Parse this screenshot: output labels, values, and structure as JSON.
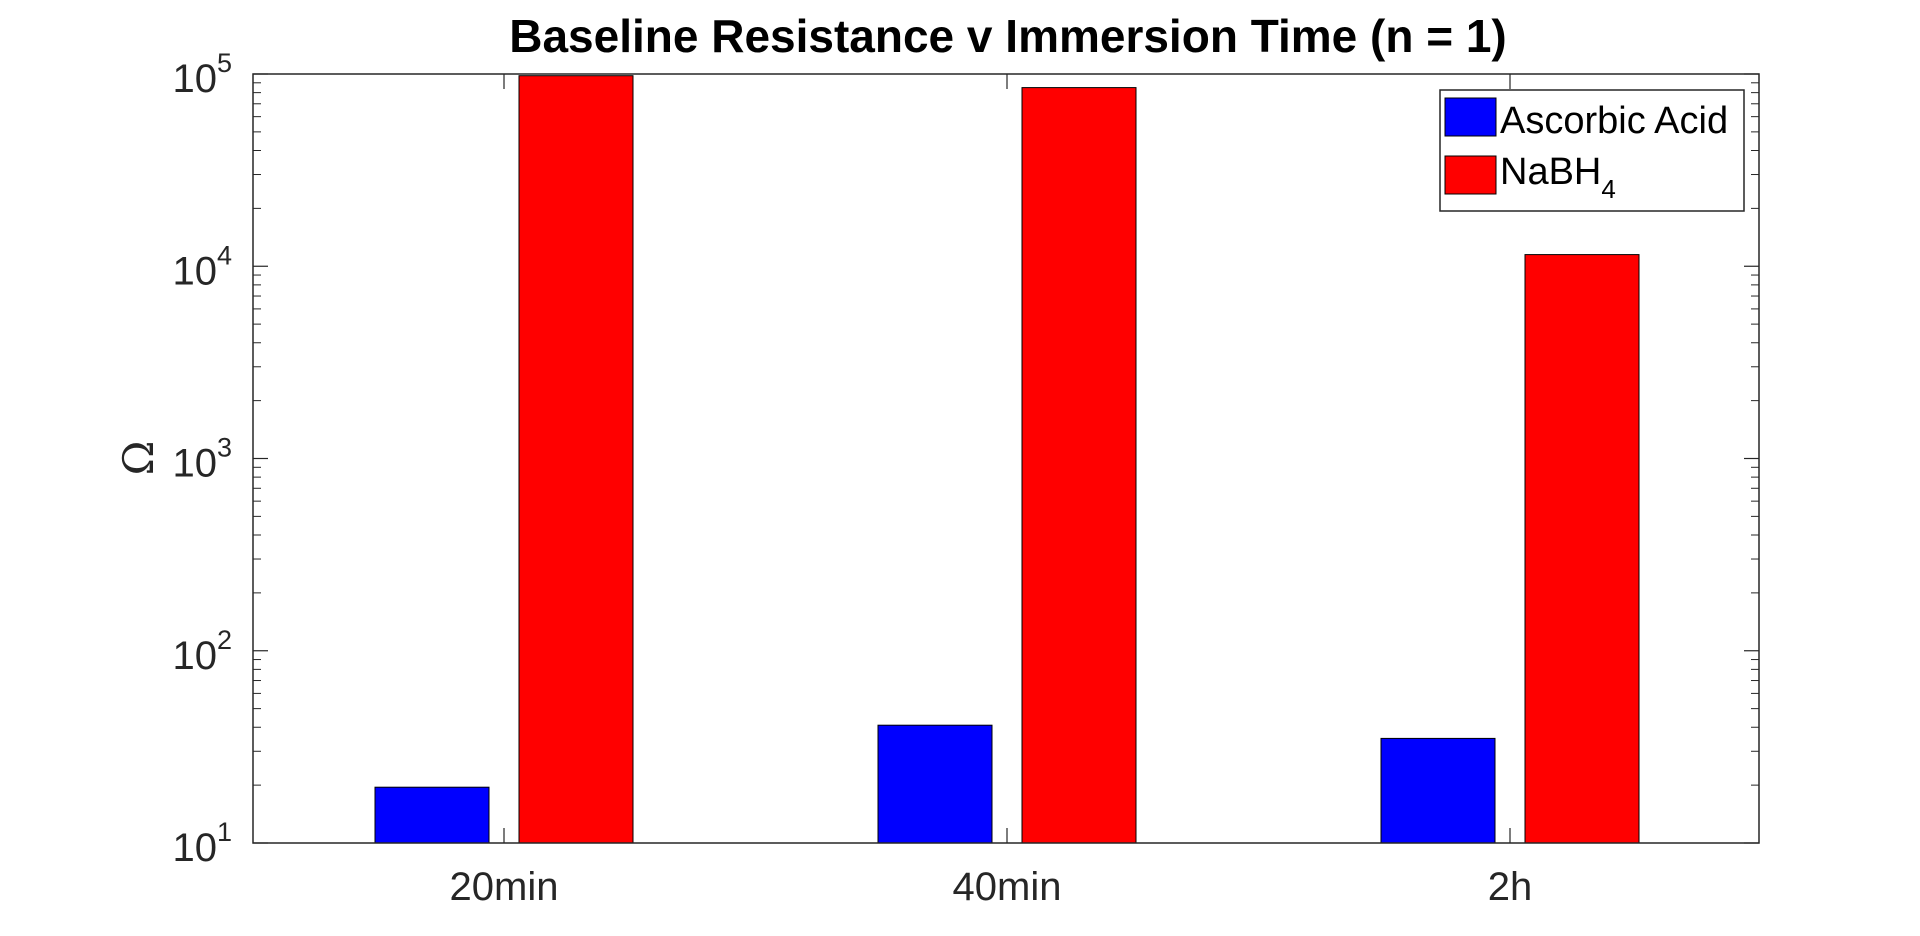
{
  "chart_data": {
    "type": "bar",
    "title": "Baseline Resistance v Immersion Time (n = 1)",
    "xlabel": "",
    "ylabel": "Ω",
    "categories": [
      "20min",
      "40min",
      "2h"
    ],
    "yscale": "log",
    "ylim": [
      10,
      100000
    ],
    "y_ticks": [
      {
        "base": "10",
        "exp": "1",
        "value": 10
      },
      {
        "base": "10",
        "exp": "2",
        "value": 100
      },
      {
        "base": "10",
        "exp": "3",
        "value": 1000
      },
      {
        "base": "10",
        "exp": "4",
        "value": 10000
      },
      {
        "base": "10",
        "exp": "5",
        "value": 100000
      }
    ],
    "grid": false,
    "legend_position": "top-right",
    "series": [
      {
        "name": "Ascorbic Acid",
        "name_base": "Ascorbic Acid",
        "name_sub": "",
        "color": "#0000ff",
        "values": [
          19.5,
          41,
          35
        ]
      },
      {
        "name": "NaBH4",
        "name_base": "NaBH",
        "name_sub": "4",
        "color": "#ff0000",
        "values": [
          98000,
          85000,
          11500
        ]
      }
    ]
  }
}
